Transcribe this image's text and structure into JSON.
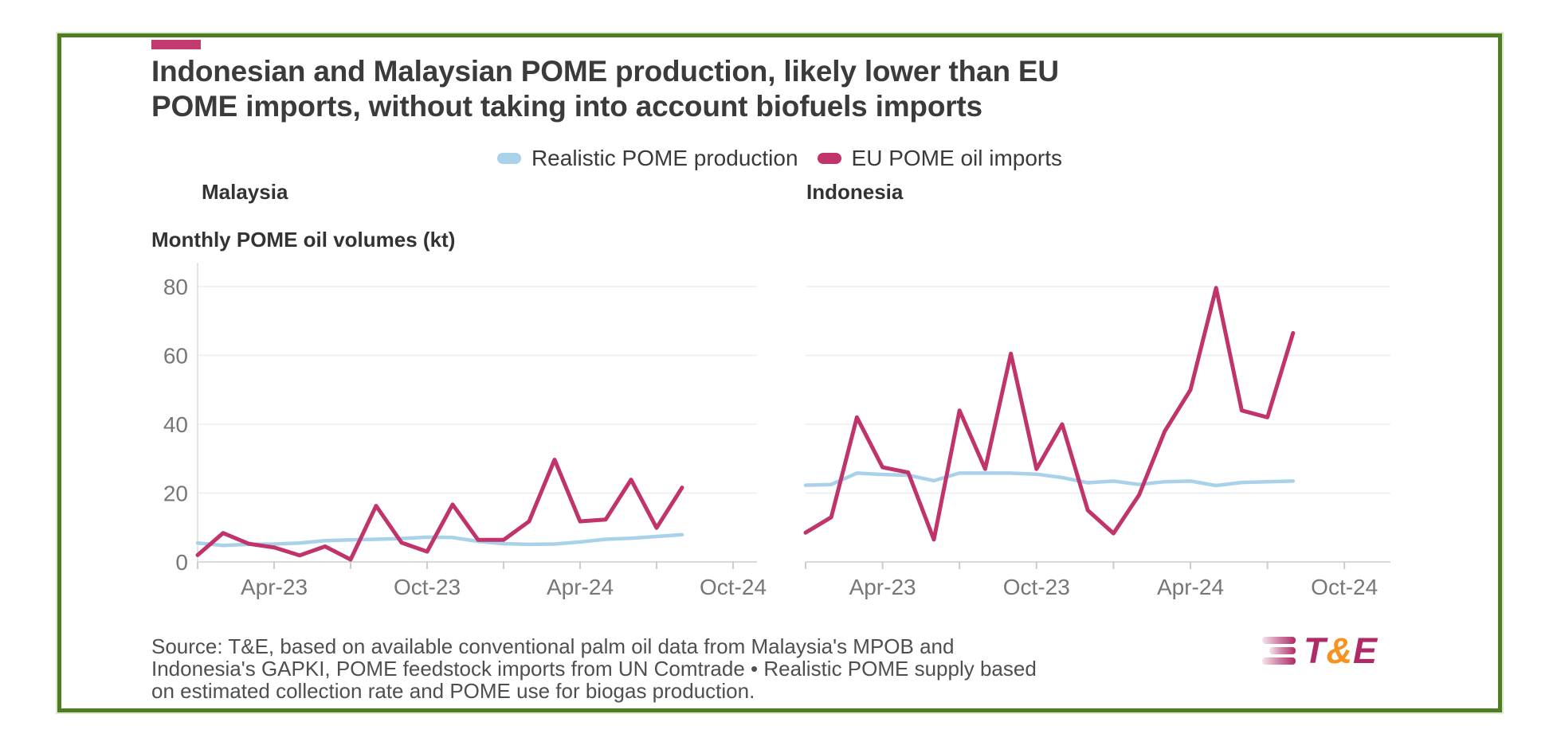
{
  "header": {
    "title_line1": "Indonesian and Malaysian POME production, likely lower than EU",
    "title_line2": "POME imports, without taking into account biofuels imports"
  },
  "legend": {
    "items": [
      {
        "label": "Realistic POME production",
        "color": "#a9d1e9"
      },
      {
        "label": "EU POME oil imports",
        "color": "#c1336b"
      }
    ]
  },
  "panels": {
    "left_label": "Malaysia",
    "right_label": "Indonesia"
  },
  "axis_title": "Monthly POME oil volumes (kt)",
  "footer": {
    "source_line1": "Source: T&E, based on available conventional palm oil data from Malaysia's MPOB and",
    "source_line2": "Indonesia's GAPKI, POME feedstock imports from UN Comtrade • Realistic POME supply based",
    "source_line3": "on estimated collection rate and POME use for biogas production.",
    "logo": {
      "t": "T",
      "amp": "&",
      "e": "E"
    }
  },
  "colors": {
    "border_green": "#4e7d22",
    "accent_bar": "#c23a6e",
    "production_blue": "#a9d1e9",
    "imports_magenta": "#c1336b",
    "grid": "#ededed",
    "axis_line": "#d9d9d9",
    "tick_label": "#777777",
    "logo_magenta": "#b12a68",
    "logo_orange": "#f6921e"
  },
  "chart_data": [
    {
      "type": "line",
      "title": "Malaysia",
      "ylabel": "Monthly POME oil volumes (kt)",
      "ylim": [
        0,
        88
      ],
      "yticks": [
        0,
        20,
        40,
        60,
        80
      ],
      "grid": "horizontal",
      "x": [
        "Jan-23",
        "Feb-23",
        "Mar-23",
        "Apr-23",
        "May-23",
        "Jun-23",
        "Jul-23",
        "Aug-23",
        "Sep-23",
        "Oct-23",
        "Nov-23",
        "Dec-23",
        "Jan-24",
        "Feb-24",
        "Mar-24",
        "Apr-24",
        "May-24",
        "Jun-24",
        "Jul-24",
        "Aug-24"
      ],
      "xticks": [
        {
          "label": "Apr-23",
          "index": 3
        },
        {
          "label": "Oct-23",
          "index": 9
        },
        {
          "label": "Apr-24",
          "index": 15
        },
        {
          "label": "Oct-24",
          "index": 21
        }
      ],
      "series": [
        {
          "name": "Realistic POME production",
          "color": "#a9d1e9",
          "values": [
            5.5,
            4.8,
            5.1,
            5.2,
            5.5,
            6.2,
            6.4,
            6.6,
            6.8,
            7.2,
            7.1,
            6.0,
            5.3,
            5.1,
            5.2,
            5.8,
            6.6,
            6.9,
            7.4,
            7.9
          ]
        },
        {
          "name": "EU POME oil imports",
          "color": "#c1336b",
          "values": [
            2.0,
            8.4,
            5.3,
            4.2,
            1.9,
            4.5,
            0.7,
            16.3,
            5.6,
            3.0,
            16.7,
            6.4,
            6.4,
            11.8,
            29.7,
            11.8,
            12.3,
            23.9,
            9.9,
            21.6
          ]
        }
      ]
    },
    {
      "type": "line",
      "title": "Indonesia",
      "ylabel": "Monthly POME oil volumes (kt)",
      "ylim": [
        0,
        88
      ],
      "yticks": [
        0,
        20,
        40,
        60,
        80
      ],
      "grid": "horizontal",
      "x": [
        "Jan-23",
        "Feb-23",
        "Mar-23",
        "Apr-23",
        "May-23",
        "Jun-23",
        "Jul-23",
        "Aug-23",
        "Sep-23",
        "Oct-23",
        "Nov-23",
        "Dec-23",
        "Jan-24",
        "Feb-24",
        "Mar-24",
        "Apr-24",
        "May-24",
        "Jun-24",
        "Jul-24",
        "Aug-24"
      ],
      "xticks": [
        {
          "label": "Apr-23",
          "index": 3
        },
        {
          "label": "Oct-23",
          "index": 9
        },
        {
          "label": "Apr-24",
          "index": 15
        },
        {
          "label": "Oct-24",
          "index": 21
        }
      ],
      "series": [
        {
          "name": "Realistic POME production",
          "color": "#a9d1e9",
          "values": [
            22.3,
            22.5,
            25.8,
            25.4,
            25.2,
            23.6,
            25.8,
            25.8,
            25.8,
            25.5,
            24.5,
            23.0,
            23.5,
            22.5,
            23.3,
            23.5,
            22.2,
            23.1,
            23.3,
            23.5
          ]
        },
        {
          "name": "EU POME oil imports",
          "color": "#c1336b",
          "values": [
            8.5,
            13.0,
            42.0,
            27.5,
            26.0,
            6.5,
            44.0,
            27.0,
            60.5,
            27.0,
            40.0,
            15.0,
            8.3,
            19.5,
            38.0,
            50.0,
            79.6,
            44.0,
            42.0,
            66.5
          ]
        }
      ]
    }
  ]
}
